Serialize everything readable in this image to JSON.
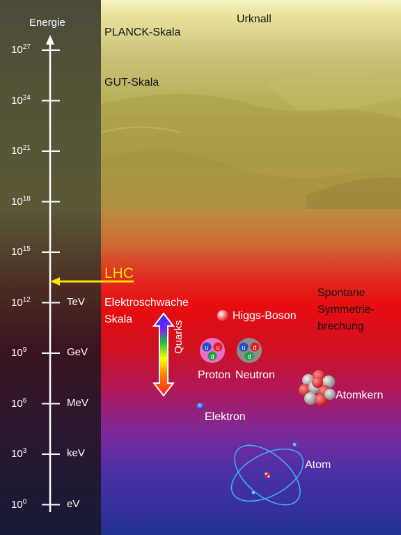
{
  "axis": {
    "title": "Energie",
    "ticks": [
      {
        "base": "10",
        "exp": "27",
        "unit": ""
      },
      {
        "base": "10",
        "exp": "24",
        "unit": ""
      },
      {
        "base": "10",
        "exp": "21",
        "unit": ""
      },
      {
        "base": "10",
        "exp": "18",
        "unit": ""
      },
      {
        "base": "10",
        "exp": "15",
        "unit": ""
      },
      {
        "base": "10",
        "exp": "12",
        "unit": "TeV"
      },
      {
        "base": "10",
        "exp": "9",
        "unit": "GeV"
      },
      {
        "base": "10",
        "exp": "6",
        "unit": "MeV"
      },
      {
        "base": "10",
        "exp": "3",
        "unit": "keV"
      },
      {
        "base": "10",
        "exp": "0",
        "unit": "eV"
      }
    ]
  },
  "labels": {
    "urknall": "Urknall",
    "planck": "PLANCK-Skala",
    "gut": "GUT-Skala",
    "lhc": "LHC",
    "elektroschwache_1": "Elektroschwache",
    "elektroschwache_2": "Skala",
    "spontane_1": "Spontane",
    "spontane_2": "Symmetrie-",
    "spontane_3": "brechung",
    "higgs": "Higgs-Boson",
    "quarks": "Quarks",
    "proton": "Proton",
    "neutron": "Neutron",
    "atomkern": "Atomkern",
    "elektron": "Elektron",
    "atom": "Atom"
  },
  "proton_quarks": [
    "u",
    "u",
    "d"
  ],
  "neutron_quarks": [
    "u",
    "d",
    "d"
  ],
  "colors": {
    "lhc": "#f5e600",
    "higgs": "#ff4040",
    "proton_ring": "#e860c0",
    "neutron_ring": "#8a8a8a",
    "quark_u_blue": "#2050d0",
    "quark_red": "#e02020",
    "quark_green": "#20a040",
    "electron": "#3060e0",
    "orbit": "#40b0ff"
  }
}
